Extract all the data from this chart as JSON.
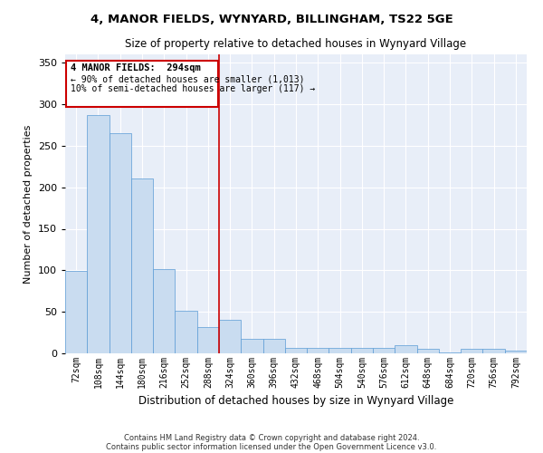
{
  "title1": "4, MANOR FIELDS, WYNYARD, BILLINGHAM, TS22 5GE",
  "title2": "Size of property relative to detached houses in Wynyard Village",
  "xlabel": "Distribution of detached houses by size in Wynyard Village",
  "ylabel": "Number of detached properties",
  "footnote1": "Contains HM Land Registry data © Crown copyright and database right 2024.",
  "footnote2": "Contains public sector information licensed under the Open Government Licence v3.0.",
  "annotation_title": "4 MANOR FIELDS:  294sqm",
  "annotation_line1": "← 90% of detached houses are smaller (1,013)",
  "annotation_line2": "10% of semi-detached houses are larger (117) →",
  "bar_color": "#c9dcf0",
  "bar_edge_color": "#5b9bd5",
  "vline_color": "#cc0000",
  "background_color": "#e8eef8",
  "bins": [
    "72sqm",
    "108sqm",
    "144sqm",
    "180sqm",
    "216sqm",
    "252sqm",
    "288sqm",
    "324sqm",
    "360sqm",
    "396sqm",
    "432sqm",
    "468sqm",
    "504sqm",
    "540sqm",
    "576sqm",
    "612sqm",
    "648sqm",
    "684sqm",
    "720sqm",
    "756sqm",
    "792sqm"
  ],
  "values": [
    99,
    287,
    265,
    210,
    101,
    51,
    32,
    40,
    18,
    18,
    7,
    7,
    7,
    7,
    7,
    10,
    5,
    1,
    6,
    6,
    3
  ],
  "ylim": [
    0,
    360
  ],
  "yticks": [
    0,
    50,
    100,
    150,
    200,
    250,
    300,
    350
  ],
  "figsize": [
    6.0,
    5.0
  ],
  "dpi": 100
}
